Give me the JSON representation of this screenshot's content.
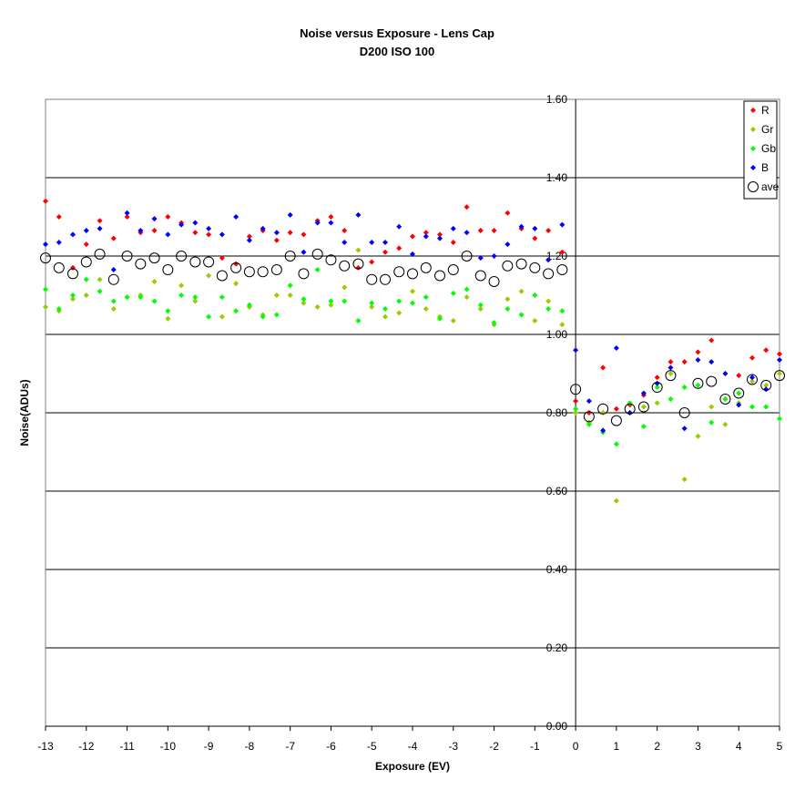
{
  "chart_data": {
    "type": "scatter",
    "title": "Noise versus Exposure - Lens Cap",
    "subtitle": "D200 ISO 100",
    "xlabel": "Exposure (EV)",
    "ylabel": "Noise(ADUs)",
    "xlim": [
      -13,
      5
    ],
    "ylim": [
      0,
      1.6
    ],
    "xticks": [
      "-13",
      "-12",
      "-11",
      "-10",
      "-9",
      "-8",
      "-7",
      "-6",
      "-5",
      "-4",
      "-3",
      "-2",
      "-1",
      "0",
      "1",
      "2",
      "3",
      "4",
      "5"
    ],
    "yticks": [
      "0.00",
      "0.20",
      "0.40",
      "0.60",
      "0.80",
      "1.00",
      "1.20",
      "1.40",
      "1.60"
    ],
    "grid": "horizontal",
    "legend_position": "top-right",
    "x": [
      -13,
      -12.67,
      -12.33,
      -12,
      -11.67,
      -11.33,
      -11,
      -10.67,
      -10.33,
      -10,
      -9.67,
      -9.33,
      -9,
      -8.67,
      -8.33,
      -8,
      -7.67,
      -7.33,
      -7,
      -6.67,
      -6.33,
      -6,
      -5.67,
      -5.33,
      -5,
      -4.67,
      -4.33,
      -4,
      -3.67,
      -3.33,
      -3,
      -2.67,
      -2.33,
      -2,
      -1.67,
      -1.33,
      -1,
      -0.67,
      -0.33,
      0,
      0.33,
      0.67,
      1,
      1.33,
      1.67,
      2,
      2.33,
      2.67,
      3,
      3.33,
      3.67,
      4,
      4.33,
      4.67,
      5
    ],
    "series": [
      {
        "name": "R",
        "color": "#ff0000",
        "marker": "diamond",
        "values": [
          1.34,
          1.3,
          1.17,
          1.23,
          1.29,
          1.245,
          1.3,
          1.26,
          1.265,
          1.3,
          1.285,
          1.26,
          1.255,
          1.195,
          1.18,
          1.25,
          1.265,
          1.24,
          1.26,
          1.255,
          1.29,
          1.3,
          1.265,
          1.17,
          1.185,
          1.21,
          1.22,
          1.25,
          1.26,
          1.255,
          1.235,
          1.325,
          1.265,
          1.265,
          1.31,
          1.27,
          1.245,
          1.265,
          1.21,
          0.83,
          0.8,
          0.915,
          0.81,
          0.82,
          0.845,
          0.89,
          0.93,
          0.93,
          0.955,
          0.985,
          0.835,
          0.895,
          0.94,
          0.96,
          0.95
        ]
      },
      {
        "name": "Gr",
        "color": "#99cc00",
        "marker": "diamond",
        "values": [
          1.07,
          1.06,
          1.09,
          1.1,
          1.14,
          1.065,
          1.095,
          1.1,
          1.135,
          1.04,
          1.125,
          1.085,
          1.15,
          1.045,
          1.13,
          1.07,
          1.05,
          1.1,
          1.1,
          1.08,
          1.07,
          1.075,
          1.12,
          1.215,
          1.07,
          1.045,
          1.055,
          1.11,
          1.065,
          1.045,
          1.035,
          1.095,
          1.065,
          1.025,
          1.09,
          1.11,
          1.035,
          1.085,
          1.025,
          0.8,
          0.775,
          0.8,
          0.575,
          0.8,
          0.815,
          0.825,
          0.9,
          0.63,
          0.74,
          0.815,
          0.77,
          0.825,
          0.88,
          0.87,
          0.9
        ]
      },
      {
        "name": "Gb",
        "color": "#00ff00",
        "marker": "diamond",
        "values": [
          1.115,
          1.065,
          1.1,
          1.14,
          1.11,
          1.085,
          1.095,
          1.095,
          1.085,
          1.06,
          1.1,
          1.095,
          1.045,
          1.095,
          1.06,
          1.075,
          1.045,
          1.05,
          1.125,
          1.09,
          1.165,
          1.085,
          1.085,
          1.035,
          1.08,
          1.065,
          1.085,
          1.08,
          1.095,
          1.04,
          1.105,
          1.115,
          1.075,
          1.03,
          1.065,
          1.05,
          1.1,
          1.065,
          1.06,
          0.81,
          0.77,
          0.75,
          0.72,
          0.825,
          0.765,
          0.865,
          0.835,
          0.865,
          0.87,
          0.775,
          0.835,
          0.85,
          0.815,
          0.815,
          0.785
        ]
      },
      {
        "name": "B",
        "color": "#0000ff",
        "marker": "diamond",
        "values": [
          1.23,
          1.235,
          1.255,
          1.265,
          1.27,
          1.165,
          1.31,
          1.265,
          1.295,
          1.255,
          1.28,
          1.285,
          1.27,
          1.255,
          1.3,
          1.24,
          1.27,
          1.26,
          1.305,
          1.21,
          1.285,
          1.285,
          1.235,
          1.305,
          1.235,
          1.235,
          1.275,
          1.205,
          1.25,
          1.245,
          1.27,
          1.26,
          1.195,
          1.2,
          1.23,
          1.275,
          1.27,
          1.19,
          1.28,
          0.96,
          0.83,
          0.755,
          0.965,
          0.8,
          0.85,
          0.875,
          0.915,
          0.76,
          0.935,
          0.93,
          0.9,
          0.82,
          0.89,
          0.86,
          0.935
        ]
      },
      {
        "name": "ave",
        "color": "#000000",
        "marker": "circle-open",
        "values": [
          1.195,
          1.17,
          1.155,
          1.185,
          1.205,
          1.14,
          1.2,
          1.18,
          1.195,
          1.165,
          1.2,
          1.185,
          1.185,
          1.15,
          1.17,
          1.16,
          1.16,
          1.165,
          1.2,
          1.155,
          1.205,
          1.19,
          1.175,
          1.18,
          1.14,
          1.14,
          1.16,
          1.155,
          1.17,
          1.15,
          1.165,
          1.2,
          1.15,
          1.135,
          1.175,
          1.18,
          1.17,
          1.155,
          1.165,
          0.86,
          0.79,
          0.81,
          0.78,
          0.81,
          0.815,
          0.865,
          0.895,
          0.8,
          0.875,
          0.88,
          0.835,
          0.85,
          0.885,
          0.87,
          0.895
        ]
      }
    ]
  }
}
